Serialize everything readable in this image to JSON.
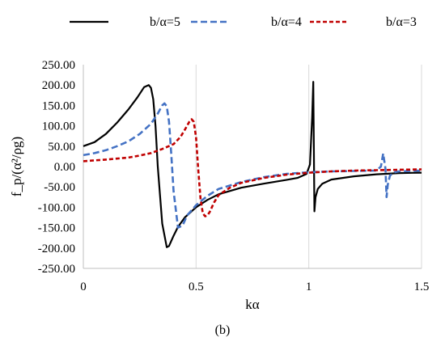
{
  "chart_data": {
    "type": "line",
    "xlabel": "kα",
    "ylabel": "f_p/(α²/ρg)",
    "xlim": [
      0,
      1.5
    ],
    "ylim": [
      -250,
      250
    ],
    "x_ticks": [
      "0",
      "0.5",
      "1",
      "1.5"
    ],
    "y_ticks": [
      "250.00",
      "200.00",
      "150.00",
      "100.00",
      "50.00",
      "0.00",
      "-50.00",
      "-100.00",
      "-150.00",
      "-200.00",
      "-250.00"
    ],
    "grid": "vertical",
    "legend_position": "top",
    "panel_label": "(b)",
    "series": [
      {
        "name": "b/α=5",
        "color": "#000000",
        "style": "solid",
        "x": [
          0,
          0.05,
          0.1,
          0.15,
          0.2,
          0.24,
          0.27,
          0.29,
          0.3,
          0.31,
          0.32,
          0.33,
          0.35,
          0.37,
          0.38,
          0.4,
          0.42,
          0.45,
          0.5,
          0.55,
          0.6,
          0.7,
          0.8,
          0.9,
          0.95,
          0.99,
          1.005,
          1.015,
          1.02,
          1.025,
          1.03,
          1.04,
          1.06,
          1.1,
          1.2,
          1.3,
          1.4,
          1.5
        ],
        "y": [
          50,
          60,
          80,
          108,
          140,
          170,
          195,
          200,
          193,
          165,
          100,
          0,
          -140,
          -198,
          -195,
          -170,
          -148,
          -125,
          -100,
          -82,
          -68,
          -52,
          -42,
          -33,
          -28,
          -18,
          5,
          120,
          208,
          -110,
          -75,
          -55,
          -42,
          -32,
          -24,
          -19,
          -16,
          -15
        ]
      },
      {
        "name": "b/α=4",
        "color": "#4472C4",
        "style": "dashed",
        "x": [
          0,
          0.05,
          0.1,
          0.15,
          0.2,
          0.25,
          0.3,
          0.33,
          0.35,
          0.36,
          0.37,
          0.38,
          0.39,
          0.4,
          0.42,
          0.44,
          0.46,
          0.5,
          0.55,
          0.6,
          0.7,
          0.8,
          0.9,
          1.0,
          1.1,
          1.2,
          1.3,
          1.32,
          1.33,
          1.34,
          1.345,
          1.35,
          1.36,
          1.38,
          1.4,
          1.5
        ],
        "y": [
          28,
          33,
          40,
          50,
          62,
          80,
          105,
          130,
          150,
          155,
          148,
          110,
          30,
          -60,
          -150,
          -145,
          -120,
          -95,
          -72,
          -55,
          -38,
          -26,
          -18,
          -14,
          -12,
          -11,
          -10,
          0,
          32,
          -5,
          -75,
          -45,
          -22,
          -14,
          -12,
          -10
        ]
      },
      {
        "name": "b/α=3",
        "color": "#C00000",
        "style": "dashed",
        "x": [
          0,
          0.1,
          0.2,
          0.25,
          0.3,
          0.35,
          0.4,
          0.43,
          0.45,
          0.47,
          0.48,
          0.49,
          0.5,
          0.51,
          0.52,
          0.53,
          0.54,
          0.55,
          0.56,
          0.58,
          0.6,
          0.65,
          0.7,
          0.8,
          0.9,
          1.0,
          1.1,
          1.2,
          1.3,
          1.4,
          1.5
        ],
        "y": [
          13,
          17,
          22,
          27,
          33,
          43,
          55,
          72,
          90,
          110,
          116,
          110,
          72,
          -10,
          -80,
          -115,
          -122,
          -120,
          -112,
          -88,
          -70,
          -52,
          -40,
          -28,
          -20,
          -15,
          -12,
          -10,
          -9,
          -8,
          -7
        ]
      }
    ]
  }
}
